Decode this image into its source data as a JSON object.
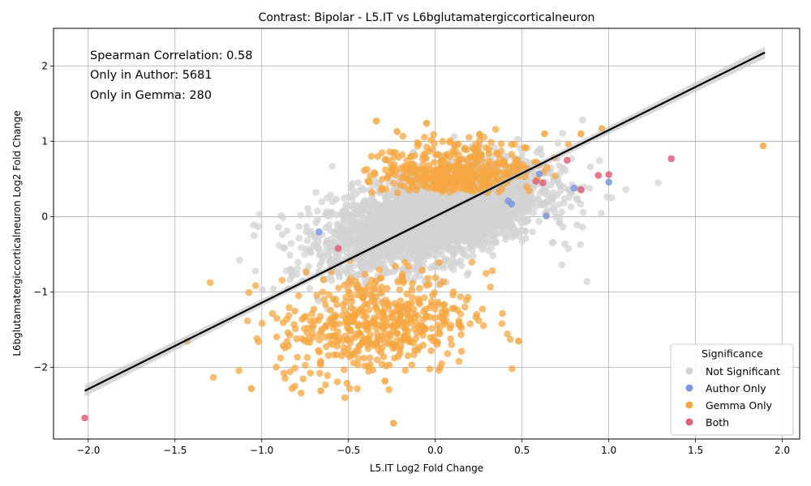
{
  "chart_data": {
    "type": "scatter",
    "title": "Contrast: Bipolar - L5.IT vs L6bglutamatergiccorticalneuron",
    "xlabel": "L5.IT Log2 Fold Change",
    "ylabel": "L6bglutamatergiccorticalneuron Log2 Fold Change",
    "xlim": [
      -2.2,
      2.1
    ],
    "ylim": [
      -2.95,
      2.5
    ],
    "x_ticks": [
      "−2.0",
      "−1.5",
      "−1.0",
      "−0.5",
      "0.0",
      "0.5",
      "1.0",
      "1.5",
      "2.0"
    ],
    "x_tick_values": [
      -2.0,
      -1.5,
      -1.0,
      -0.5,
      0.0,
      0.5,
      1.0,
      1.5,
      2.0
    ],
    "y_ticks": [
      "−2",
      "−1",
      "0",
      "1",
      "2"
    ],
    "y_tick_values": [
      -2,
      -1,
      0,
      1,
      2
    ],
    "grid": true,
    "annotations": [
      "Spearman Correlation: 0.58",
      "Only in Author: 5681",
      "Only in Gemma: 280"
    ],
    "regression_line": {
      "x": [
        -2.02,
        1.9
      ],
      "y": [
        -2.31,
        2.18
      ]
    },
    "legend": {
      "title": "Significance",
      "placement": "lower-right",
      "entries": [
        {
          "label": "Not Significant",
          "color": "#d3d3d3"
        },
        {
          "label": "Author Only",
          "color": "#7b97e0"
        },
        {
          "label": "Gemma Only",
          "color": "#f5a742"
        },
        {
          "label": "Both",
          "color": "#e0607a"
        }
      ]
    },
    "series": [
      {
        "name": "Author Only",
        "color": "#7b97e0",
        "points": [
          [
            -0.67,
            -0.2
          ],
          [
            0.8,
            0.38
          ],
          [
            1.0,
            0.46
          ],
          [
            0.64,
            0.01
          ],
          [
            0.44,
            0.17
          ],
          [
            0.42,
            0.21
          ],
          [
            0.6,
            0.57
          ]
        ]
      },
      {
        "name": "Both",
        "color": "#e0607a",
        "points": [
          [
            -2.02,
            -2.67
          ],
          [
            1.36,
            0.77
          ],
          [
            1.0,
            0.56
          ],
          [
            0.94,
            0.55
          ],
          [
            0.84,
            0.36
          ],
          [
            0.76,
            0.75
          ],
          [
            0.62,
            0.45
          ],
          [
            0.58,
            0.47
          ],
          [
            -0.56,
            -0.42
          ]
        ]
      },
      {
        "name": "Gemma Only (outliers)",
        "color": "#f5a742",
        "points": [
          [
            1.89,
            0.94
          ],
          [
            -1.43,
            -1.65
          ],
          [
            -1.06,
            -2.28
          ],
          [
            -0.24,
            -2.74
          ],
          [
            -0.34,
            1.27
          ],
          [
            -0.05,
            1.24
          ],
          [
            -0.22,
            1.13
          ],
          [
            0.96,
            1.17
          ],
          [
            0.84,
            1.1
          ],
          [
            0.63,
            1.1
          ],
          [
            0.48,
            -1.65
          ],
          [
            -0.66,
            -2.31
          ],
          [
            -0.29,
            -2.18
          ]
        ]
      }
    ],
    "dense_clouds": {
      "not_significant": {
        "center": [
          0.0,
          0.0
        ],
        "x_spread": 0.3,
        "y_spread": 0.28,
        "count": 3500
      },
      "gemma_only_upper": {
        "center": [
          0.1,
          0.55
        ],
        "x_spread": 0.22,
        "y_spread": 0.22,
        "count": 420
      },
      "gemma_only_lower": {
        "center": [
          -0.35,
          -1.35
        ],
        "x_spread": 0.28,
        "y_spread": 0.35,
        "count": 520
      }
    }
  }
}
